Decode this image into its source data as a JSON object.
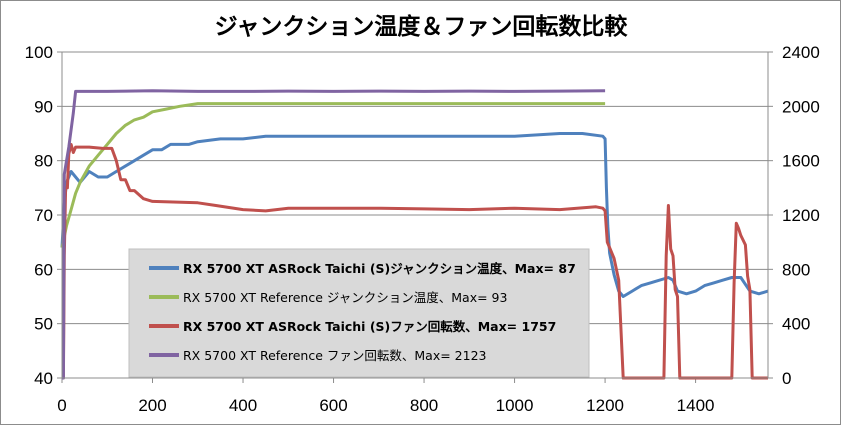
{
  "chart_data": {
    "type": "line",
    "title": "ジャンクション温度＆ファン回転数比較",
    "xlabel": "",
    "ylabel_left": "",
    "ylabel_right": "",
    "xlim": [
      0,
      1560
    ],
    "ylim_left": [
      40,
      100
    ],
    "ylim_right": [
      0,
      2400
    ],
    "grid": "horizontal",
    "x_ticks": [
      "0",
      "200",
      "400",
      "600",
      "800",
      "1000",
      "1200",
      "1400"
    ],
    "y_left_ticks": [
      "40",
      "50",
      "60",
      "70",
      "80",
      "90",
      "100"
    ],
    "y_right_ticks": [
      "0",
      "400",
      "800",
      "1200",
      "1600",
      "2000",
      "2400"
    ],
    "legend_position": "inside lower-left",
    "series": [
      {
        "name": "RX 5700 XT ASRock Taichi (S)ジャンクション温度、Max= 87",
        "axis": "left",
        "color": "#4f81bd",
        "bold": true,
        "points": [
          [
            0,
            64
          ],
          [
            5,
            72
          ],
          [
            10,
            76
          ],
          [
            20,
            78
          ],
          [
            30,
            77
          ],
          [
            40,
            76
          ],
          [
            50,
            77
          ],
          [
            60,
            78
          ],
          [
            80,
            77
          ],
          [
            100,
            77
          ],
          [
            120,
            78
          ],
          [
            140,
            79
          ],
          [
            160,
            80
          ],
          [
            180,
            81
          ],
          [
            200,
            82
          ],
          [
            220,
            82
          ],
          [
            240,
            83
          ],
          [
            260,
            83
          ],
          [
            280,
            83
          ],
          [
            300,
            83.5
          ],
          [
            350,
            84
          ],
          [
            400,
            84
          ],
          [
            450,
            84.5
          ],
          [
            500,
            84.5
          ],
          [
            600,
            84.5
          ],
          [
            700,
            84.5
          ],
          [
            800,
            84.5
          ],
          [
            900,
            84.5
          ],
          [
            1000,
            84.5
          ],
          [
            1100,
            85
          ],
          [
            1150,
            85
          ],
          [
            1195,
            84.5
          ],
          [
            1200,
            84
          ],
          [
            1203,
            75
          ],
          [
            1206,
            68
          ],
          [
            1210,
            63
          ],
          [
            1220,
            59
          ],
          [
            1230,
            56
          ],
          [
            1240,
            55
          ],
          [
            1260,
            56
          ],
          [
            1280,
            57
          ],
          [
            1300,
            57.5
          ],
          [
            1320,
            58
          ],
          [
            1340,
            58.5
          ],
          [
            1350,
            58
          ],
          [
            1360,
            56
          ],
          [
            1380,
            55.5
          ],
          [
            1400,
            56
          ],
          [
            1420,
            57
          ],
          [
            1440,
            57.5
          ],
          [
            1460,
            58
          ],
          [
            1480,
            58.5
          ],
          [
            1500,
            58.5
          ],
          [
            1520,
            56
          ],
          [
            1540,
            55.5
          ],
          [
            1560,
            56
          ]
        ]
      },
      {
        "name": "RX 5700 XT Reference ジャンクション温度、Max= 93",
        "axis": "left",
        "color": "#9bbb59",
        "bold": false,
        "points": [
          [
            0,
            64
          ],
          [
            10,
            68
          ],
          [
            20,
            71
          ],
          [
            30,
            74
          ],
          [
            40,
            76
          ],
          [
            60,
            79
          ],
          [
            80,
            81
          ],
          [
            100,
            83
          ],
          [
            120,
            85
          ],
          [
            140,
            86.5
          ],
          [
            160,
            87.5
          ],
          [
            180,
            88
          ],
          [
            200,
            89
          ],
          [
            230,
            89.5
          ],
          [
            260,
            90
          ],
          [
            300,
            90.5
          ],
          [
            400,
            90.5
          ],
          [
            500,
            90.5
          ],
          [
            600,
            90.5
          ],
          [
            700,
            90.5
          ],
          [
            800,
            90.5
          ],
          [
            900,
            90.5
          ],
          [
            1000,
            90.5
          ],
          [
            1100,
            90.5
          ],
          [
            1200,
            90.5
          ]
        ]
      },
      {
        "name": "RX 5700 XT ASRock Taichi (S)ファン回転数、Max= 1757",
        "axis": "right",
        "color": "#c0504d",
        "bold": true,
        "points": [
          [
            0,
            0
          ],
          [
            3,
            0
          ],
          [
            5,
            900
          ],
          [
            8,
            1400
          ],
          [
            12,
            1400
          ],
          [
            15,
            1650
          ],
          [
            20,
            1720
          ],
          [
            25,
            1660
          ],
          [
            30,
            1700
          ],
          [
            60,
            1700
          ],
          [
            90,
            1690
          ],
          [
            110,
            1690
          ],
          [
            120,
            1600
          ],
          [
            130,
            1460
          ],
          [
            140,
            1460
          ],
          [
            150,
            1380
          ],
          [
            160,
            1380
          ],
          [
            180,
            1320
          ],
          [
            200,
            1300
          ],
          [
            300,
            1290
          ],
          [
            340,
            1270
          ],
          [
            400,
            1240
          ],
          [
            450,
            1230
          ],
          [
            500,
            1250
          ],
          [
            600,
            1250
          ],
          [
            700,
            1250
          ],
          [
            800,
            1245
          ],
          [
            900,
            1240
          ],
          [
            1000,
            1250
          ],
          [
            1100,
            1240
          ],
          [
            1180,
            1260
          ],
          [
            1195,
            1250
          ],
          [
            1200,
            1230
          ],
          [
            1205,
            1000
          ],
          [
            1210,
            960
          ],
          [
            1220,
            880
          ],
          [
            1230,
            720
          ],
          [
            1240,
            0
          ],
          [
            1330,
            0
          ],
          [
            1335,
            900
          ],
          [
            1340,
            1270
          ],
          [
            1345,
            950
          ],
          [
            1350,
            900
          ],
          [
            1355,
            650
          ],
          [
            1360,
            600
          ],
          [
            1365,
            0
          ],
          [
            1480,
            0
          ],
          [
            1485,
            700
          ],
          [
            1490,
            1140
          ],
          [
            1495,
            1100
          ],
          [
            1500,
            1050
          ],
          [
            1510,
            980
          ],
          [
            1515,
            750
          ],
          [
            1520,
            650
          ],
          [
            1525,
            0
          ],
          [
            1560,
            0
          ]
        ]
      },
      {
        "name": "RX 5700 XT Reference ファン回転数、Max= 2123",
        "axis": "right",
        "color": "#8064a2",
        "bold": false,
        "points": [
          [
            0,
            0
          ],
          [
            3,
            0
          ],
          [
            5,
            1500
          ],
          [
            15,
            1700
          ],
          [
            25,
            1950
          ],
          [
            30,
            2110
          ],
          [
            100,
            2110
          ],
          [
            200,
            2115
          ],
          [
            300,
            2110
          ],
          [
            400,
            2110
          ],
          [
            500,
            2112
          ],
          [
            600,
            2110
          ],
          [
            700,
            2112
          ],
          [
            800,
            2110
          ],
          [
            900,
            2112
          ],
          [
            1000,
            2110
          ],
          [
            1100,
            2112
          ],
          [
            1200,
            2115
          ]
        ]
      }
    ]
  }
}
